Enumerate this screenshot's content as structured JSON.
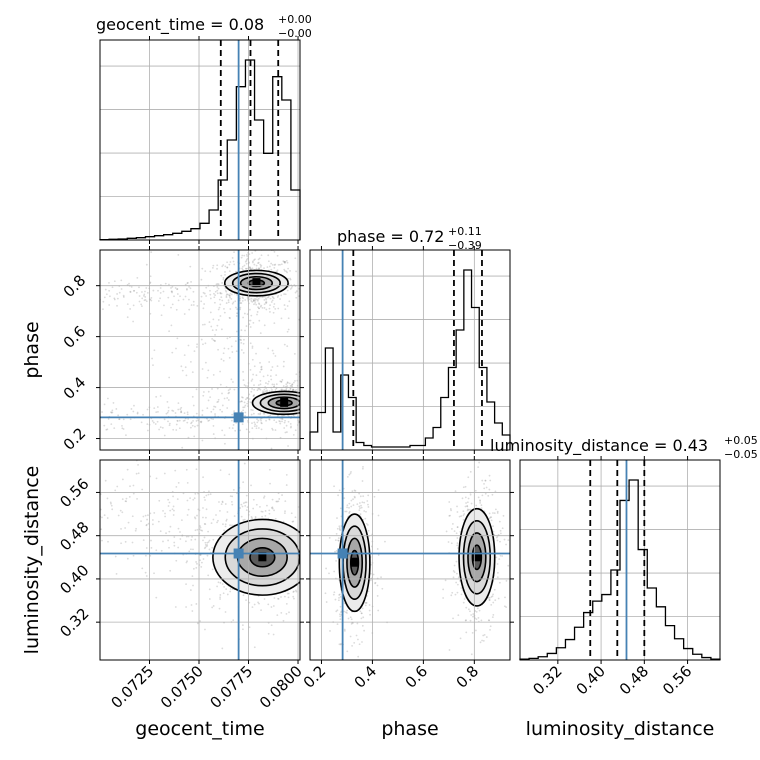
{
  "chart_data": {
    "type": "corner",
    "parameters": [
      "geocent_time",
      "phase",
      "luminosity_distance"
    ],
    "axis_labels": {
      "geocent_time": "geocent_time",
      "phase": "phase",
      "luminosity_distance": "luminosity_distance"
    },
    "titles": [
      {
        "param": "geocent_time",
        "prefix": "geocent_time = ",
        "median": "0.08",
        "plus": "+0.00",
        "minus": "−0.00"
      },
      {
        "param": "phase",
        "prefix": "phase = ",
        "median": "0.72",
        "plus": "+0.11",
        "minus": "−0.39"
      },
      {
        "param": "luminosity_distance",
        "prefix": "luminosity_distance = ",
        "median": "0.43",
        "plus": "+0.05",
        "minus": "−0.05"
      }
    ],
    "ranges": {
      "geocent_time": [
        0.07,
        0.0801
      ],
      "phase": [
        0.155,
        0.94
      ],
      "luminosity_distance": [
        0.25,
        0.62
      ]
    },
    "ticks": {
      "geocent_time": [
        "0.0725",
        "0.0750",
        "0.0775",
        "0.0800"
      ],
      "phase": [
        "0.2",
        "0.4",
        "0.6",
        "0.8"
      ],
      "luminosity_distance": [
        "0.32",
        "0.40",
        "0.48",
        "0.56"
      ]
    },
    "tick_values": {
      "geocent_time": [
        0.0725,
        0.075,
        0.0775,
        0.08
      ],
      "phase": [
        0.2,
        0.4,
        0.6,
        0.8
      ],
      "luminosity_distance": [
        0.32,
        0.4,
        0.48,
        0.56
      ]
    },
    "truths": {
      "geocent_time": 0.077,
      "phase": 0.283,
      "luminosity_distance": 0.447
    },
    "quantiles": {
      "geocent_time": [
        0.0761,
        0.0776,
        0.079
      ],
      "phase": [
        0.325,
        0.72,
        0.83
      ],
      "luminosity_distance": [
        0.38,
        0.43,
        0.48
      ]
    },
    "histograms": {
      "geocent_time": {
        "bins": [
          0.07,
          0.0801
        ],
        "counts": [
          0.5,
          1,
          1.5,
          2.5,
          3.5,
          5,
          6.5,
          8,
          10,
          13,
          17,
          25,
          45,
          90,
          150,
          230,
          270,
          180,
          130,
          245,
          210,
          75
        ]
      },
      "phase": {
        "bins": [
          0.155,
          0.94
        ],
        "counts": [
          12,
          25,
          68,
          12,
          50,
          35,
          5,
          3,
          2,
          2,
          2,
          2,
          2,
          3,
          3,
          8,
          15,
          35,
          55,
          80,
          120,
          95,
          55,
          32,
          18,
          10
        ]
      },
      "luminosity_distance": {
        "bins": [
          0.25,
          0.62
        ],
        "counts": [
          1,
          2,
          4,
          8,
          15,
          25,
          40,
          58,
          72,
          80,
          110,
          195,
          220,
          135,
          88,
          65,
          42,
          26,
          14,
          7,
          3,
          1
        ]
      }
    },
    "colors": {
      "truth": "#4682b4",
      "hist": "#000000",
      "grid": "#b0b0b0",
      "points": "#999999",
      "quantile": "#000000"
    },
    "grid": true
  }
}
